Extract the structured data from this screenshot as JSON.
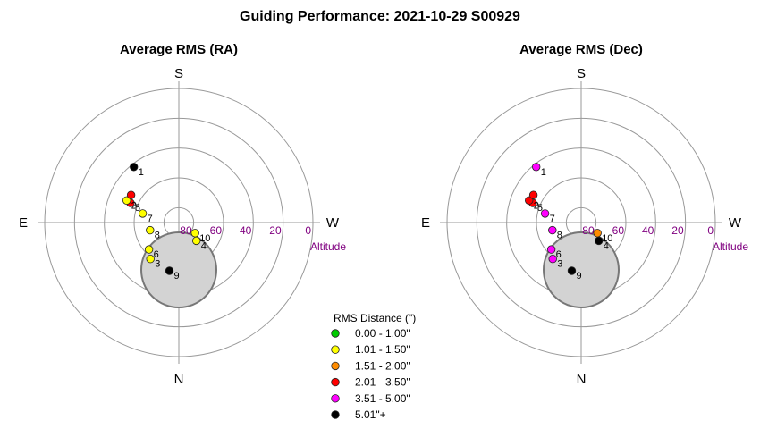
{
  "chart_data": {
    "type": "scatter",
    "title": "Guiding Performance: 2021-10-29 S00929",
    "directions": {
      "top": "S",
      "bottom": "N",
      "left": "E",
      "right": "W"
    },
    "altitude_label": "Altitude",
    "altitude_ticks": [
      "80",
      "60",
      "40",
      "20",
      "0"
    ],
    "panels": [
      {
        "title": "Average RMS (RA)",
        "points": [
          {
            "label": "9",
            "az": 191,
            "alt": 57,
            "color": "#000000"
          },
          {
            "label": "3",
            "az": 218,
            "alt": 59,
            "color": "#ffff00"
          },
          {
            "label": "10",
            "az": 123,
            "alt": 77,
            "color": "#ffff00"
          },
          {
            "label": "4",
            "az": 136,
            "alt": 73,
            "color": "#ffff00"
          },
          {
            "label": "6",
            "az": 228,
            "alt": 63,
            "color": "#ffff00"
          },
          {
            "label": "8",
            "az": 255,
            "alt": 70,
            "color": "#ffff00"
          },
          {
            "label": "7",
            "az": 284,
            "alt": 65,
            "color": "#ffff00"
          },
          {
            "label": "5",
            "az": 292,
            "alt": 55,
            "color": "#ff0000"
          },
          {
            "label": "2",
            "az": 293,
            "alt": 52,
            "color": "#ffff00"
          },
          {
            "label": "",
            "az": 300,
            "alt": 53,
            "color": "#ff0000"
          },
          {
            "label": "1",
            "az": 321,
            "alt": 42,
            "color": "#000000"
          }
        ]
      },
      {
        "title": "Average RMS (Dec)",
        "points": [
          {
            "label": "9",
            "az": 191,
            "alt": 57,
            "color": "#000000"
          },
          {
            "label": "3",
            "az": 218,
            "alt": 59,
            "color": "#ff00ff"
          },
          {
            "label": "10",
            "az": 123,
            "alt": 77,
            "color": "#ff8c00"
          },
          {
            "label": "4",
            "az": 136,
            "alt": 73,
            "color": "#000000"
          },
          {
            "label": "6",
            "az": 228,
            "alt": 63,
            "color": "#ff00ff"
          },
          {
            "label": "8",
            "az": 255,
            "alt": 70,
            "color": "#ff00ff"
          },
          {
            "label": "7",
            "az": 284,
            "alt": 65,
            "color": "#ff00ff"
          },
          {
            "label": "5",
            "az": 292,
            "alt": 55,
            "color": "#ff0000"
          },
          {
            "label": "2",
            "az": 293,
            "alt": 52,
            "color": "#ff0000"
          },
          {
            "label": "",
            "az": 300,
            "alt": 53,
            "color": "#ff0000"
          },
          {
            "label": "1",
            "az": 321,
            "alt": 42,
            "color": "#ff00ff"
          }
        ]
      }
    ],
    "legend": {
      "title": "RMS Distance (\")",
      "entries": [
        {
          "label": "0.00 - 1.00\"",
          "color": "#00cc00"
        },
        {
          "label": "1.01 - 1.50\"",
          "color": "#ffff00"
        },
        {
          "label": "1.51 - 2.00\"",
          "color": "#ff8c00"
        },
        {
          "label": "2.01 - 3.50\"",
          "color": "#ff0000"
        },
        {
          "label": "3.51 - 5.00\"",
          "color": "#ff00ff"
        },
        {
          "label": "5.01\"+",
          "color": "#000000"
        }
      ]
    }
  }
}
